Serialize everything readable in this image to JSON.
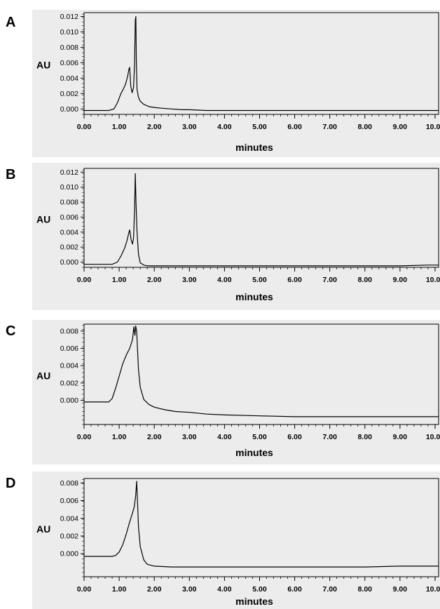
{
  "chart_data": [
    {
      "panel_label": "A",
      "type": "line",
      "xlabel": "minutes",
      "ylabel": "AU",
      "xlim": [
        0,
        10.1
      ],
      "ylim": [
        -0.0007,
        0.0125
      ],
      "x_ticks": [
        "0.00",
        "1.00",
        "2.00",
        "3.00",
        "4.00",
        "5.00",
        "6.00",
        "7.00",
        "8.00",
        "9.00",
        "10.00"
      ],
      "y_ticks": [
        "0.000",
        "0.002",
        "0.004",
        "0.006",
        "0.008",
        "0.010",
        "0.012"
      ],
      "series": [
        {
          "x": [
            0,
            0.7,
            0.85,
            0.95,
            1.05,
            1.12,
            1.18,
            1.24,
            1.28,
            1.3,
            1.33,
            1.37,
            1.41,
            1.44,
            1.46,
            1.475,
            1.49,
            1.51,
            1.55,
            1.6,
            1.7,
            1.85,
            2.0,
            2.2,
            2.5,
            2.8,
            3.0,
            3.5,
            4.0,
            5.0,
            6.0,
            7.0,
            8.0,
            9.0,
            10.1
          ],
          "y": [
            -0.0002,
            -0.0002,
            0.0,
            0.0008,
            0.002,
            0.0026,
            0.0032,
            0.0042,
            0.0052,
            0.0054,
            0.003,
            0.0021,
            0.0028,
            0.006,
            0.0115,
            0.012,
            0.006,
            0.0025,
            0.0015,
            0.001,
            0.0006,
            0.0003,
            0.0002,
            0.0001,
            0.0,
            -0.0001,
            -0.0001,
            -0.0002,
            -0.0002,
            -0.0002,
            -0.0002,
            -0.0002,
            -0.0002,
            -0.0002,
            -0.0002
          ]
        }
      ]
    },
    {
      "panel_label": "B",
      "type": "line",
      "xlabel": "minutes",
      "ylabel": "AU",
      "xlim": [
        0,
        10.1
      ],
      "ylim": [
        -0.0007,
        0.0125
      ],
      "x_ticks": [
        "0.00",
        "1.00",
        "2.00",
        "3.00",
        "4.00",
        "5.00",
        "6.00",
        "7.00",
        "8.00",
        "9.00",
        "10.00"
      ],
      "y_ticks": [
        "0.000",
        "0.002",
        "0.004",
        "0.006",
        "0.008",
        "0.010",
        "0.012"
      ],
      "series": [
        {
          "x": [
            0,
            0.8,
            0.95,
            1.05,
            1.15,
            1.22,
            1.27,
            1.3,
            1.34,
            1.38,
            1.41,
            1.44,
            1.46,
            1.48,
            1.51,
            1.55,
            1.6,
            1.7,
            1.8,
            2.0,
            3.0,
            4.0,
            5.0,
            6.0,
            7.0,
            8.0,
            9.0,
            9.8,
            10.1
          ],
          "y": [
            -0.0003,
            -0.0003,
            0.0,
            0.0008,
            0.0018,
            0.0028,
            0.0038,
            0.0043,
            0.003,
            0.0024,
            0.0032,
            0.007,
            0.0118,
            0.008,
            0.004,
            0.001,
            -0.0001,
            -0.0004,
            -0.0005,
            -0.0005,
            -0.0005,
            -0.0005,
            -0.0005,
            -0.0005,
            -0.0005,
            -0.0005,
            -0.0005,
            -0.0004,
            -0.0004
          ]
        }
      ]
    },
    {
      "panel_label": "C",
      "type": "line",
      "xlabel": "minutes",
      "ylabel": "AU",
      "xlim": [
        0,
        10.1
      ],
      "ylim": [
        -0.0028,
        0.0088
      ],
      "x_ticks": [
        "0.00",
        "1.00",
        "2.00",
        "3.00",
        "4.00",
        "5.00",
        "6.00",
        "7.00",
        "8.00",
        "9.00",
        "10.00"
      ],
      "y_ticks": [
        "0.000",
        "0.002",
        "0.004",
        "0.006",
        "0.008"
      ],
      "series": [
        {
          "x": [
            0,
            0.7,
            0.8,
            0.9,
            1.0,
            1.1,
            1.2,
            1.3,
            1.38,
            1.42,
            1.45,
            1.47,
            1.5,
            1.52,
            1.55,
            1.6,
            1.7,
            1.85,
            2.0,
            2.3,
            2.6,
            3.0,
            3.5,
            4.0,
            5.0,
            6.0,
            7.0,
            8.0,
            9.0,
            10.1
          ],
          "y": [
            -0.0002,
            -0.0002,
            0.0002,
            0.0014,
            0.0028,
            0.0042,
            0.0052,
            0.006,
            0.007,
            0.0085,
            0.0075,
            0.0086,
            0.008,
            0.006,
            0.0035,
            0.0015,
            0.0001,
            -0.0005,
            -0.0008,
            -0.0011,
            -0.0013,
            -0.0014,
            -0.0016,
            -0.0017,
            -0.0018,
            -0.0019,
            -0.0019,
            -0.0019,
            -0.0019,
            -0.0019
          ]
        }
      ]
    },
    {
      "panel_label": "D",
      "type": "line",
      "xlabel": "minutes",
      "ylabel": "AU",
      "xlim": [
        0,
        10.1
      ],
      "ylim": [
        -0.0026,
        0.0085
      ],
      "x_ticks": [
        "0.00",
        "1.00",
        "2.00",
        "3.00",
        "4.00",
        "5.00",
        "6.00",
        "7.00",
        "8.00",
        "9.00",
        "10.00"
      ],
      "y_ticks": [
        "0.000",
        "0.002",
        "0.004",
        "0.006",
        "0.008"
      ],
      "series": [
        {
          "x": [
            0,
            0.8,
            0.9,
            1.0,
            1.1,
            1.2,
            1.3,
            1.38,
            1.43,
            1.47,
            1.5,
            1.52,
            1.55,
            1.6,
            1.7,
            1.8,
            2.0,
            2.5,
            3.0,
            4.0,
            5.0,
            6.0,
            7.0,
            8.0,
            9.0,
            10.1
          ],
          "y": [
            -0.0003,
            -0.0003,
            -0.0002,
            0.0002,
            0.001,
            0.0022,
            0.0036,
            0.0046,
            0.0053,
            0.0065,
            0.0082,
            0.006,
            0.003,
            0.0008,
            -0.0007,
            -0.0012,
            -0.0014,
            -0.0015,
            -0.0015,
            -0.0015,
            -0.0015,
            -0.0015,
            -0.0015,
            -0.0015,
            -0.0014,
            -0.0014
          ]
        }
      ]
    }
  ]
}
